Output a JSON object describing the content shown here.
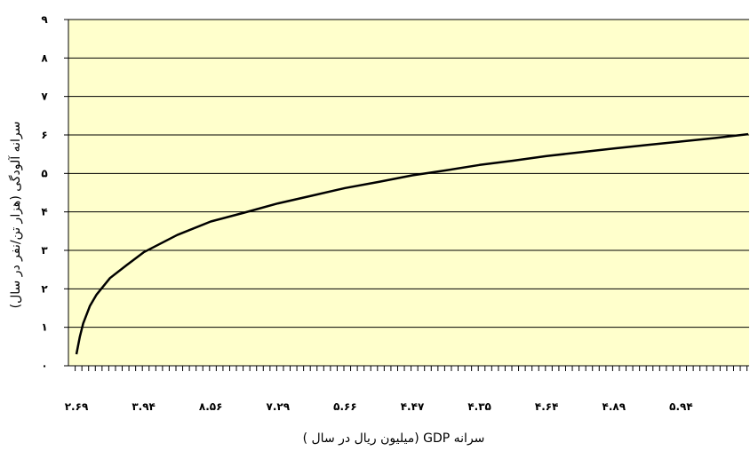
{
  "chart_data": {
    "type": "line",
    "title": "",
    "xlabel": "سرانه GDP (میلیون ریال در سال )",
    "ylabel": "سرانه آلودگی (هزار تن/نفر در سال)",
    "x_tick_labels": [
      "۲.۶۹",
      "۳.۹۴",
      "۸.۵۶",
      "۷.۲۹",
      "۵.۶۶",
      "۴.۴۷",
      "۴.۳۵",
      "۴.۶۴",
      "۴.۸۹",
      "۵.۹۴"
    ],
    "y_tick_labels": [
      "۰",
      "۱",
      "۲",
      "۳",
      "۴",
      "۵",
      "۶",
      "۷",
      "۸",
      "۹"
    ],
    "ylim": [
      0,
      9
    ],
    "grid": true,
    "series": [
      {
        "color": "#000000",
        "x_index": [
          0,
          0.05,
          0.1,
          0.2,
          0.3,
          0.5,
          0.75,
          1,
          1.5,
          2,
          2.5,
          3,
          3.5,
          4,
          4.5,
          5,
          5.5,
          6,
          6.5,
          7,
          7.5,
          8,
          8.5,
          9,
          9.5,
          10
        ],
        "values": [
          0.3,
          0.75,
          1.1,
          1.55,
          1.85,
          2.28,
          2.62,
          2.95,
          3.4,
          3.75,
          3.98,
          4.22,
          4.42,
          4.62,
          4.78,
          4.95,
          5.08,
          5.22,
          5.33,
          5.45,
          5.55,
          5.65,
          5.74,
          5.83,
          5.92,
          6.02
        ]
      }
    ],
    "colors": {
      "plot_background": "#FFFFCC",
      "gridline": "#000000",
      "line": "#000000"
    }
  }
}
